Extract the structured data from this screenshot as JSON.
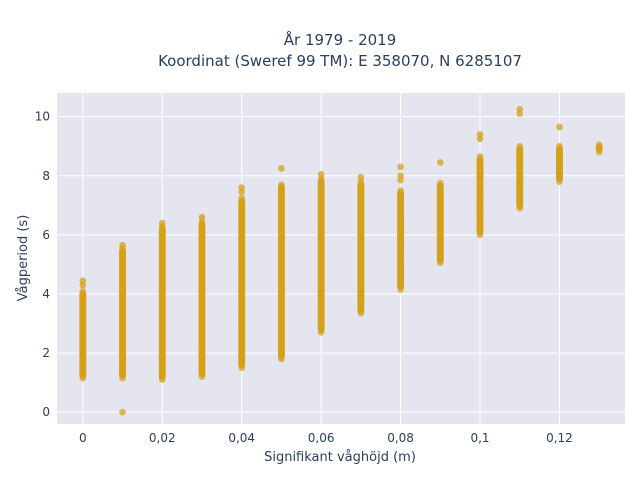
{
  "chart_data": {
    "type": "scatter",
    "title_line1": "År 1979 - 2019",
    "title_line2": "Koordinat (Sweref 99 TM): E 358070, N 6285107",
    "xlabel": "Signifikant våghöjd (m)",
    "ylabel": "Vågperiod (s)",
    "xlim": [
      -0.0065,
      0.1365
    ],
    "ylim": [
      -0.4,
      10.8
    ],
    "x_ticks": [
      0,
      0.02,
      0.04,
      0.06,
      0.08,
      0.1,
      0.12
    ],
    "x_tick_labels": [
      "0",
      "0,02",
      "0,04",
      "0,06",
      "0,08",
      "0,1",
      "0,12"
    ],
    "y_ticks": [
      0,
      2,
      4,
      6,
      8,
      10
    ],
    "y_tick_labels": [
      "0",
      "2",
      "4",
      "6",
      "8",
      "10"
    ],
    "grid": true,
    "marker_color": "#d4a017",
    "background_color": "#e5e5f0",
    "columns": [
      {
        "x": 0.0,
        "y_min": 1.15,
        "y_max": 4.1,
        "outliers": [
          4.3,
          4.45
        ]
      },
      {
        "x": 0.01,
        "y_min": 1.15,
        "y_max": 5.55,
        "outliers": [
          0.0,
          5.65
        ]
      },
      {
        "x": 0.02,
        "y_min": 1.1,
        "y_max": 6.3,
        "outliers": [
          6.4
        ]
      },
      {
        "x": 0.03,
        "y_min": 1.2,
        "y_max": 6.45,
        "outliers": [
          6.6
        ]
      },
      {
        "x": 0.04,
        "y_min": 1.5,
        "y_max": 7.25,
        "outliers": [
          7.45,
          7.6
        ]
      },
      {
        "x": 0.05,
        "y_min": 1.8,
        "y_max": 7.7,
        "outliers": [
          8.25
        ]
      },
      {
        "x": 0.06,
        "y_min": 2.7,
        "y_max": 7.9,
        "outliers": [
          8.05
        ]
      },
      {
        "x": 0.07,
        "y_min": 3.35,
        "y_max": 7.8,
        "outliers": [
          7.95
        ]
      },
      {
        "x": 0.08,
        "y_min": 4.15,
        "y_max": 7.5,
        "outliers": [
          7.85,
          8.0,
          8.3
        ]
      },
      {
        "x": 0.09,
        "y_min": 5.05,
        "y_max": 7.75,
        "outliers": [
          8.45
        ]
      },
      {
        "x": 0.1,
        "y_min": 6.0,
        "y_max": 8.65,
        "outliers": [
          9.25,
          9.4
        ]
      },
      {
        "x": 0.11,
        "y_min": 6.9,
        "y_max": 9.0,
        "outliers": [
          10.1,
          10.25
        ]
      },
      {
        "x": 0.12,
        "y_min": 7.8,
        "y_max": 9.0,
        "outliers": [
          9.65
        ]
      },
      {
        "x": 0.13,
        "y_min": 8.8,
        "y_max": 9.05,
        "outliers": []
      }
    ]
  }
}
